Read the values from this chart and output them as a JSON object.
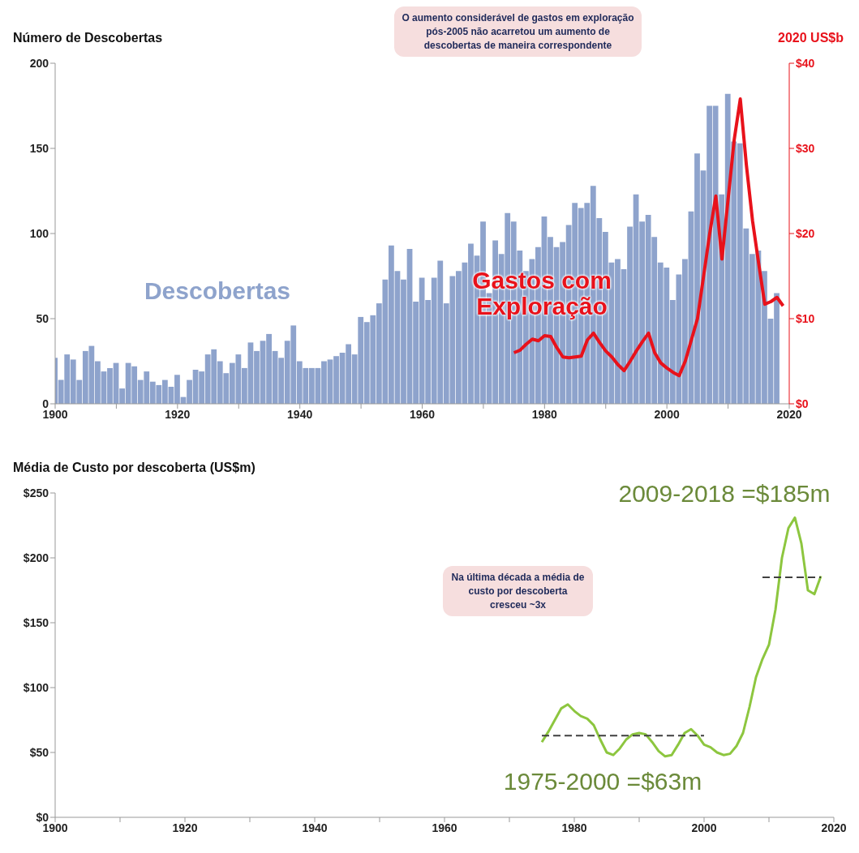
{
  "chart_data": [
    {
      "type": "bar",
      "title": "Número de Descobertas",
      "y2label": "2020 US$b",
      "annotations": [
        "O aumento considerável de gastos em exploração pós-2005 não acarretou um aumento de descobertas de maneira correspondente"
      ],
      "xlim": [
        1900,
        2020
      ],
      "xticks": [
        1900,
        {
          "value": 1910,
          "label": null
        },
        1920,
        {
          "value": 1930,
          "label": null
        },
        1940,
        {
          "value": 1950,
          "label": null
        },
        1960,
        {
          "value": 1970,
          "label": null
        },
        1980,
        {
          "value": 1990,
          "label": null
        },
        2000,
        {
          "value": 2010,
          "label": null
        },
        2020
      ],
      "ylim": [
        0,
        200
      ],
      "yticks": [
        0,
        50,
        100,
        150,
        200
      ],
      "y2lim": [
        0,
        40
      ],
      "y2ticks": [
        {
          "value": 0,
          "label": "$0"
        },
        {
          "value": 10,
          "label": "$10"
        },
        {
          "value": 20,
          "label": "$20"
        },
        {
          "value": 30,
          "label": "$30"
        },
        {
          "value": 40,
          "label": "$40"
        }
      ],
      "marker": "none",
      "series": [
        {
          "name": "Descobertas",
          "color": "#8ea3cc",
          "x": [
            1900,
            1901,
            1902,
            1903,
            1904,
            1905,
            1906,
            1907,
            1908,
            1909,
            1910,
            1911,
            1912,
            1913,
            1914,
            1915,
            1916,
            1917,
            1918,
            1919,
            1920,
            1921,
            1922,
            1923,
            1924,
            1925,
            1926,
            1927,
            1928,
            1929,
            1930,
            1931,
            1932,
            1933,
            1934,
            1935,
            1936,
            1937,
            1938,
            1939,
            1940,
            1941,
            1942,
            1943,
            1944,
            1945,
            1946,
            1947,
            1948,
            1949,
            1950,
            1951,
            1952,
            1953,
            1954,
            1955,
            1956,
            1957,
            1958,
            1959,
            1960,
            1961,
            1962,
            1963,
            1964,
            1965,
            1966,
            1967,
            1968,
            1969,
            1970,
            1971,
            1972,
            1973,
            1974,
            1975,
            1976,
            1977,
            1978,
            1979,
            1980,
            1981,
            1982,
            1983,
            1984,
            1985,
            1986,
            1987,
            1988,
            1989,
            1990,
            1991,
            1992,
            1993,
            1994,
            1995,
            1996,
            1997,
            1998,
            1999,
            2000,
            2001,
            2002,
            2003,
            2004,
            2005,
            2006,
            2007,
            2008,
            2009,
            2010,
            2011,
            2012,
            2013,
            2014,
            2015,
            2016,
            2017,
            2018
          ],
          "values": [
            27,
            14,
            29,
            26,
            14,
            31,
            34,
            25,
            19,
            21,
            24,
            9,
            24,
            22,
            14,
            19,
            13,
            11,
            14,
            10,
            17,
            4,
            14,
            20,
            19,
            29,
            32,
            25,
            18,
            24,
            29,
            21,
            36,
            31,
            37,
            41,
            31,
            27,
            37,
            46,
            25,
            21,
            21,
            21,
            25,
            26,
            28,
            30,
            35,
            29,
            51,
            48,
            52,
            59,
            73,
            93,
            78,
            73,
            91,
            60,
            74,
            61,
            74,
            84,
            59,
            75,
            78,
            83,
            94,
            87,
            107,
            65,
            96,
            88,
            112,
            107,
            90,
            78,
            85,
            92,
            110,
            98,
            92,
            95,
            105,
            118,
            115,
            118,
            128,
            109,
            101,
            83,
            85,
            79,
            104,
            123,
            107,
            111,
            98,
            83,
            80,
            61,
            76,
            85,
            113,
            147,
            137,
            175,
            175,
            123,
            182,
            154,
            153,
            103,
            88,
            90,
            78,
            50,
            65
          ]
        },
        {
          "type": "line",
          "name": "Gastos com Exploração",
          "axis": "y2",
          "color": "#e8121b",
          "x": [
            1975,
            1976,
            1977,
            1978,
            1979,
            1980,
            1981,
            1982,
            1983,
            1984,
            1985,
            1986,
            1987,
            1988,
            1989,
            1990,
            1991,
            1992,
            1993,
            1994,
            1995,
            1996,
            1997,
            1998,
            1999,
            2000,
            2001,
            2002,
            2003,
            2004,
            2005,
            2006,
            2007,
            2008,
            2009,
            2010,
            2011,
            2012,
            2013,
            2014,
            2015,
            2016,
            2017,
            2018,
            2019
          ],
          "values": [
            6.0,
            6.3,
            7.0,
            7.6,
            7.4,
            8.0,
            7.9,
            6.6,
            5.5,
            5.4,
            5.5,
            5.6,
            7.5,
            8.3,
            7.2,
            6.2,
            5.5,
            4.6,
            3.9,
            5.0,
            6.2,
            7.3,
            8.3,
            6.0,
            4.8,
            4.2,
            3.7,
            3.3,
            5.0,
            7.5,
            10,
            15,
            20,
            24.4,
            17,
            24,
            31,
            35.8,
            28,
            21.5,
            16.5,
            11.7,
            12,
            12.5,
            11.5
          ]
        }
      ]
    },
    {
      "type": "line",
      "title": "Média de Custo por descoberta (US$m)",
      "annotations": [
        "Na última década a média de custo por descoberta cresceu ~3x",
        "1975-2000 =$63m",
        "2009-2018 =$185m"
      ],
      "xlim": [
        1900,
        2020
      ],
      "xticks": [
        1900,
        {
          "value": 1910,
          "label": null
        },
        1920,
        {
          "value": 1930,
          "label": null
        },
        1940,
        {
          "value": 1950,
          "label": null
        },
        1960,
        {
          "value": 1970,
          "label": null
        },
        1980,
        {
          "value": 1990,
          "label": null
        },
        2000,
        {
          "value": 2010,
          "label": null
        },
        2020
      ],
      "ylim": [
        0,
        250
      ],
      "yticks": [
        {
          "value": 0,
          "label": "$0"
        },
        {
          "value": 50,
          "label": "$50"
        },
        {
          "value": 100,
          "label": "$100"
        },
        {
          "value": 150,
          "label": "$150"
        },
        {
          "value": 200,
          "label": "$200"
        },
        {
          "value": 250,
          "label": "$250"
        }
      ],
      "marker": "none",
      "series": [
        {
          "color": "#8dc63f",
          "x": [
            1975,
            1976,
            1977,
            1978,
            1979,
            1980,
            1981,
            1982,
            1983,
            1984,
            1985,
            1986,
            1987,
            1988,
            1989,
            1990,
            1991,
            1992,
            1993,
            1994,
            1995,
            1996,
            1997,
            1998,
            1999,
            2000,
            2001,
            2002,
            2003,
            2004,
            2005,
            2006,
            2007,
            2008,
            2009,
            2010,
            2011,
            2012,
            2013,
            2014,
            2015,
            2016,
            2017,
            2018
          ],
          "values": [
            58,
            66,
            75,
            84,
            87,
            82,
            78,
            76,
            71,
            60,
            50,
            48,
            53,
            60,
            64,
            65,
            64,
            58,
            51,
            47,
            48,
            56,
            65,
            68,
            63,
            56,
            54,
            50,
            48,
            49,
            55,
            65,
            85,
            108,
            122,
            133,
            160,
            200,
            223,
            231,
            211,
            175,
            172,
            186
          ]
        },
        {
          "color": "#404040",
          "line_style": "dashed",
          "x": [
            1975,
            2000
          ],
          "values": [
            63,
            63
          ]
        },
        {
          "color": "#404040",
          "line_style": "dashed",
          "x": [
            2009,
            2018
          ],
          "values": [
            185,
            185
          ]
        }
      ]
    }
  ]
}
